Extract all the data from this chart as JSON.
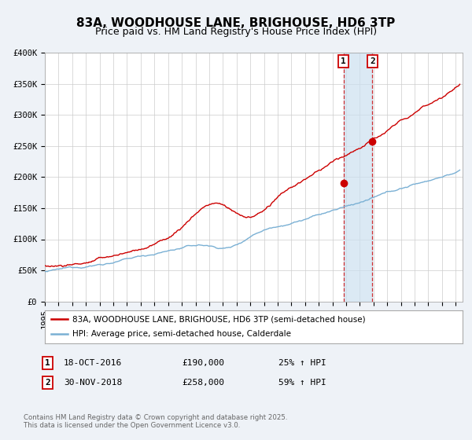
{
  "title": "83A, WOODHOUSE LANE, BRIGHOUSE, HD6 3TP",
  "subtitle": "Price paid vs. HM Land Registry's House Price Index (HPI)",
  "ylim": [
    0,
    400000
  ],
  "yticks": [
    0,
    50000,
    100000,
    150000,
    200000,
    250000,
    300000,
    350000,
    400000
  ],
  "ytick_labels": [
    "£0",
    "£50K",
    "£100K",
    "£150K",
    "£200K",
    "£250K",
    "£300K",
    "£350K",
    "£400K"
  ],
  "xlim_start": 1995.0,
  "xlim_end": 2025.5,
  "hpi_color": "#7ab0d4",
  "price_color": "#cc0000",
  "marker_color": "#cc0000",
  "event1_date": 2016.8,
  "event1_price": 190000,
  "event2_date": 2018.92,
  "event2_price": 258000,
  "legend_line1": "83A, WOODHOUSE LANE, BRIGHOUSE, HD6 3TP (semi-detached house)",
  "legend_line2": "HPI: Average price, semi-detached house, Calderdale",
  "footnote": "Contains HM Land Registry data © Crown copyright and database right 2025.\nThis data is licensed under the Open Government Licence v3.0.",
  "background_color": "#eef2f7",
  "plot_bg_color": "#ffffff",
  "grid_color": "#cccccc",
  "title_fontsize": 11,
  "subtitle_fontsize": 9,
  "tick_fontsize": 7.5
}
